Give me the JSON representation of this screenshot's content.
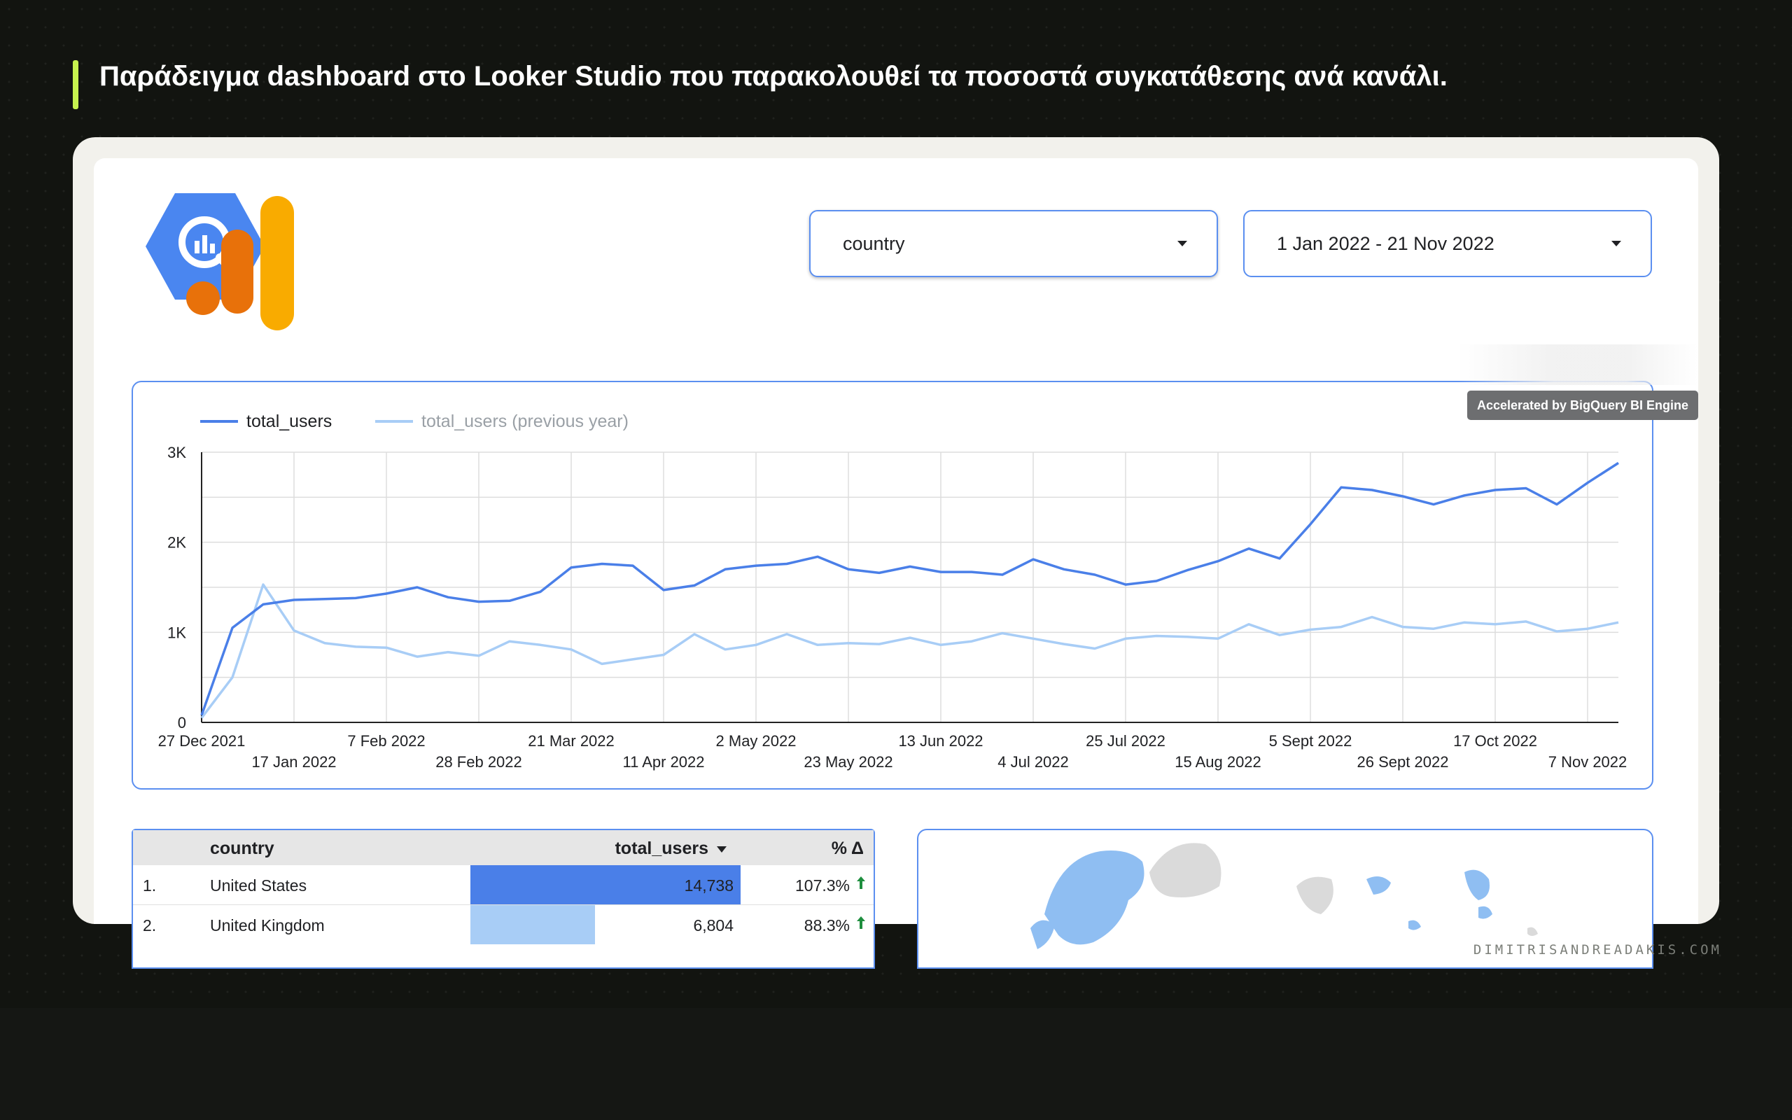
{
  "caption": "Παράδειγμα dashboard στο Looker Studio που παρακολουθεί τα ποσοστά συγκατάθεσης ανά κανάλι.",
  "watermark": "DIMITRISANDREADAKIS.COM",
  "logo": {
    "icon": "bigquery-analytics-logo-icon",
    "colors": [
      "#4a86f0",
      "#e8710a",
      "#f9ab00"
    ]
  },
  "filters": {
    "country": {
      "value": "country"
    },
    "date_range": {
      "value": "1 Jan 2022 - 21 Nov 2022"
    }
  },
  "badge": "Accelerated by BigQuery BI Engine",
  "chart_data": {
    "type": "line",
    "legend_position": "top-left",
    "grid": true,
    "ylim": [
      0,
      3000
    ],
    "y_ticks": [
      "0",
      "1K",
      "2K",
      "3K"
    ],
    "x_ticks_top": [
      "27 Dec 2021",
      "7 Feb 2022",
      "21 Mar 2022",
      "2 May 2022",
      "13 Jun 2022",
      "25 Jul 2022",
      "5 Sept 2022",
      "17 Oct 2022"
    ],
    "x_ticks_bottom": [
      "17 Jan 2022",
      "28 Feb 2022",
      "11 Apr 2022",
      "23 May 2022",
      "4 Jul 2022",
      "15 Aug 2022",
      "26 Sept 2022",
      "7 Nov 2022"
    ],
    "series": [
      {
        "name": "total_users",
        "color": "#4a7fe8",
        "values": [
          80,
          1050,
          1310,
          1360,
          1370,
          1380,
          1430,
          1500,
          1390,
          1340,
          1350,
          1450,
          1720,
          1760,
          1740,
          1470,
          1520,
          1700,
          1740,
          1760,
          1840,
          1700,
          1660,
          1730,
          1670,
          1670,
          1640,
          1810,
          1700,
          1640,
          1530,
          1570,
          1690,
          1790,
          1930,
          1820,
          2200,
          2610,
          2580,
          2510,
          2420,
          2520,
          2580,
          2600,
          2420,
          2660,
          2880
        ]
      },
      {
        "name": "total_users (previous year)",
        "color": "#a8cdf6",
        "values": [
          50,
          500,
          1530,
          1020,
          880,
          840,
          830,
          730,
          780,
          740,
          900,
          860,
          810,
          650,
          700,
          750,
          980,
          810,
          860,
          980,
          860,
          880,
          870,
          940,
          860,
          900,
          990,
          930,
          870,
          820,
          930,
          960,
          950,
          930,
          1090,
          970,
          1030,
          1060,
          1170,
          1060,
          1040,
          1110,
          1090,
          1120,
          1010,
          1040,
          1110
        ]
      }
    ]
  },
  "table": {
    "headers": {
      "country": "country",
      "total_users": "total_users",
      "delta": "% Δ"
    },
    "rows": [
      {
        "index": "1.",
        "country": "United States",
        "total_users": "14,738",
        "share": 1.0,
        "delta": "107.3%"
      },
      {
        "index": "2.",
        "country": "United Kingdom",
        "total_users": "6,804",
        "share": 0.46,
        "delta": "88.3%"
      }
    ]
  },
  "map": {
    "icon": "geo-map-icon"
  }
}
